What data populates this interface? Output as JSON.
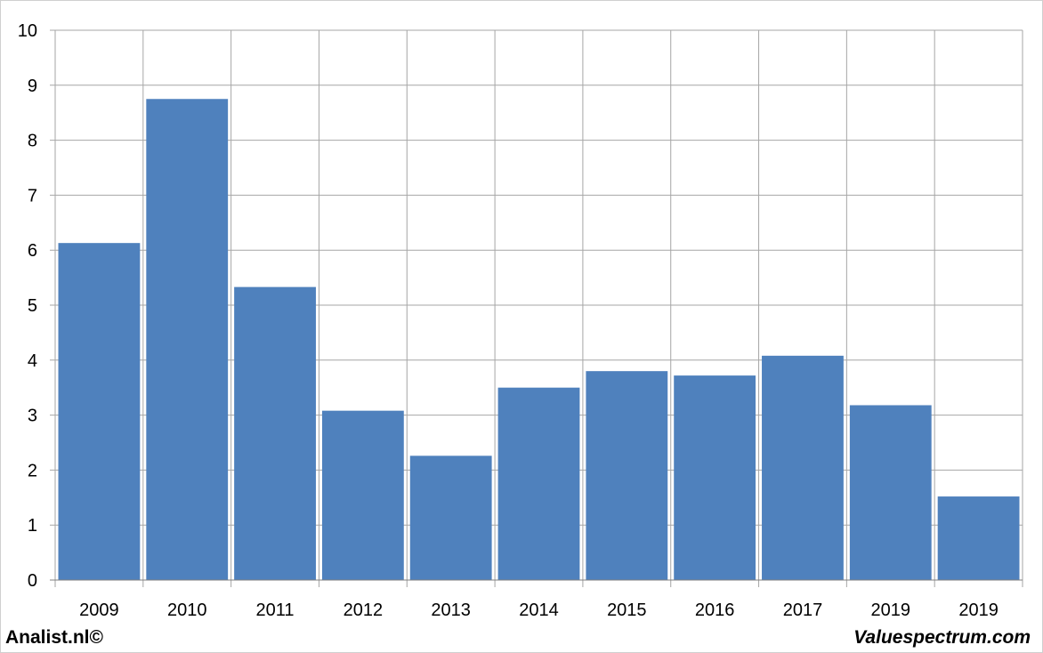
{
  "chart_data": {
    "type": "bar",
    "categories": [
      "2009",
      "2010",
      "2011",
      "2012",
      "2013",
      "2014",
      "2015",
      "2016",
      "2017",
      "2019",
      "2019"
    ],
    "values": [
      6.13,
      8.75,
      5.33,
      3.08,
      2.26,
      3.5,
      3.8,
      3.72,
      4.08,
      3.18,
      1.52
    ],
    "title": "",
    "xlabel": "",
    "ylabel": "",
    "ylim": [
      0,
      10
    ],
    "yticks": [
      "0",
      "1",
      "2",
      "3",
      "4",
      "5",
      "6",
      "7",
      "8",
      "9",
      "10"
    ],
    "grid": true,
    "bar_color": "#4f81bd",
    "grid_color": "#a6a6a6"
  },
  "footer": {
    "left_label": "Analist.nl©",
    "right_label": "Valuespectrum.com"
  }
}
